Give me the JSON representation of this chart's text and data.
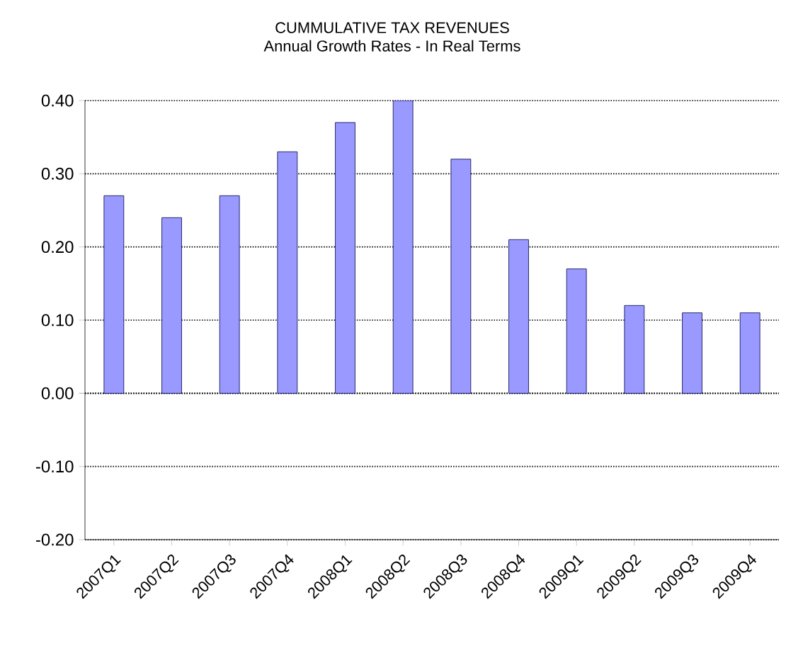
{
  "chart_data": {
    "type": "bar",
    "title": "CUMMULATIVE TAX REVENUES",
    "subtitle": "Annual Growth Rates - In Real Terms",
    "categories": [
      "2007Q1",
      "2007Q2",
      "2007Q3",
      "2007Q4",
      "2008Q1",
      "2008Q2",
      "2008Q3",
      "2008Q4",
      "2009Q1",
      "2009Q2",
      "2009Q3",
      "2009Q4"
    ],
    "values": [
      0.27,
      0.24,
      0.27,
      0.33,
      0.37,
      0.4,
      0.32,
      0.21,
      0.17,
      0.12,
      0.11,
      0.11
    ],
    "color": "#9999ff",
    "ylim": [
      -0.2,
      0.4
    ],
    "yticks": [
      {
        "value": -0.2,
        "label": "-0.20"
      },
      {
        "value": -0.1,
        "label": "-0.10"
      },
      {
        "value": 0,
        "label": "0.00"
      },
      {
        "value": 0.1,
        "label": "0.10"
      },
      {
        "value": 0.2,
        "label": "0.20"
      },
      {
        "value": 0.3,
        "label": "0.30"
      },
      {
        "value": 0.4,
        "label": "0.40"
      }
    ],
    "grid": "y"
  }
}
